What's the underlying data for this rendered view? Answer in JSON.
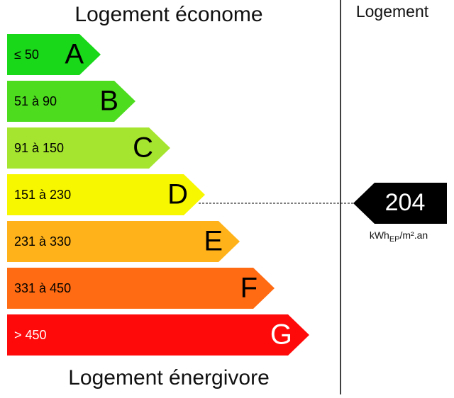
{
  "header": {
    "title_top": "Logement économe",
    "title_bottom": "Logement énergivore",
    "column_title": "Logement"
  },
  "classes": [
    {
      "range": "≤ 50",
      "letter": "A",
      "color": "#19d719",
      "text_color": "#000"
    },
    {
      "range": "51 à 90",
      "letter": "B",
      "color": "#4ddc1e",
      "text_color": "#000"
    },
    {
      "range": "91 à 150",
      "letter": "C",
      "color": "#a6e52f",
      "text_color": "#000"
    },
    {
      "range": "151 à 230",
      "letter": "D",
      "color": "#f7f700",
      "text_color": "#000"
    },
    {
      "range": "231 à 330",
      "letter": "E",
      "color": "#ffb21a",
      "text_color": "#000"
    },
    {
      "range": "331 à 450",
      "letter": "F",
      "color": "#ff6b12",
      "text_color": "#000"
    },
    {
      "range": "> 450",
      "letter": "G",
      "color": "#ff0a0a",
      "text_color": "#fff"
    }
  ],
  "indicator": {
    "value": "204",
    "unit_main": "kWh",
    "unit_sub": "EP",
    "unit_rest": "/m².an",
    "class_index": 3
  }
}
